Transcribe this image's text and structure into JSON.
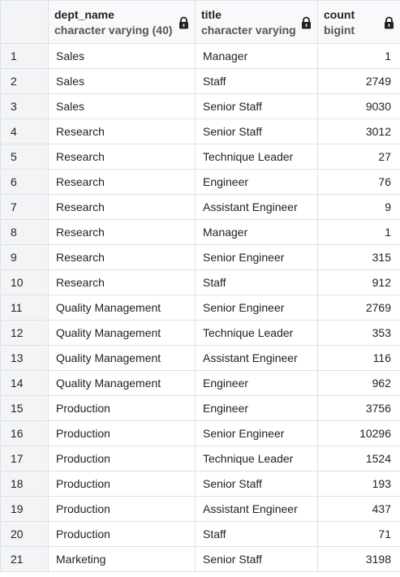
{
  "columns": [
    {
      "name": "dept_name",
      "type": "character varying (40)",
      "icon": "lock-icon"
    },
    {
      "name": "title",
      "type": "character varying",
      "icon": "lock-icon"
    },
    {
      "name": "count",
      "type": "bigint",
      "icon": "lock-icon"
    }
  ],
  "rows": [
    {
      "index": "1",
      "dept_name": "Sales",
      "title": "Manager",
      "count": "1"
    },
    {
      "index": "2",
      "dept_name": "Sales",
      "title": "Staff",
      "count": "2749"
    },
    {
      "index": "3",
      "dept_name": "Sales",
      "title": "Senior Staff",
      "count": "9030"
    },
    {
      "index": "4",
      "dept_name": "Research",
      "title": "Senior Staff",
      "count": "3012"
    },
    {
      "index": "5",
      "dept_name": "Research",
      "title": "Technique Leader",
      "count": "27"
    },
    {
      "index": "6",
      "dept_name": "Research",
      "title": "Engineer",
      "count": "76"
    },
    {
      "index": "7",
      "dept_name": "Research",
      "title": "Assistant Engineer",
      "count": "9"
    },
    {
      "index": "8",
      "dept_name": "Research",
      "title": "Manager",
      "count": "1"
    },
    {
      "index": "9",
      "dept_name": "Research",
      "title": "Senior Engineer",
      "count": "315"
    },
    {
      "index": "10",
      "dept_name": "Research",
      "title": "Staff",
      "count": "912"
    },
    {
      "index": "11",
      "dept_name": "Quality Management",
      "title": "Senior Engineer",
      "count": "2769"
    },
    {
      "index": "12",
      "dept_name": "Quality Management",
      "title": "Technique Leader",
      "count": "353"
    },
    {
      "index": "13",
      "dept_name": "Quality Management",
      "title": "Assistant Engineer",
      "count": "116"
    },
    {
      "index": "14",
      "dept_name": "Quality Management",
      "title": "Engineer",
      "count": "962"
    },
    {
      "index": "15",
      "dept_name": "Production",
      "title": "Engineer",
      "count": "3756"
    },
    {
      "index": "16",
      "dept_name": "Production",
      "title": "Senior Engineer",
      "count": "10296"
    },
    {
      "index": "17",
      "dept_name": "Production",
      "title": "Technique Leader",
      "count": "1524"
    },
    {
      "index": "18",
      "dept_name": "Production",
      "title": "Senior Staff",
      "count": "193"
    },
    {
      "index": "19",
      "dept_name": "Production",
      "title": "Assistant Engineer",
      "count": "437"
    },
    {
      "index": "20",
      "dept_name": "Production",
      "title": "Staff",
      "count": "71"
    },
    {
      "index": "21",
      "dept_name": "Marketing",
      "title": "Senior Staff",
      "count": "3198"
    }
  ]
}
